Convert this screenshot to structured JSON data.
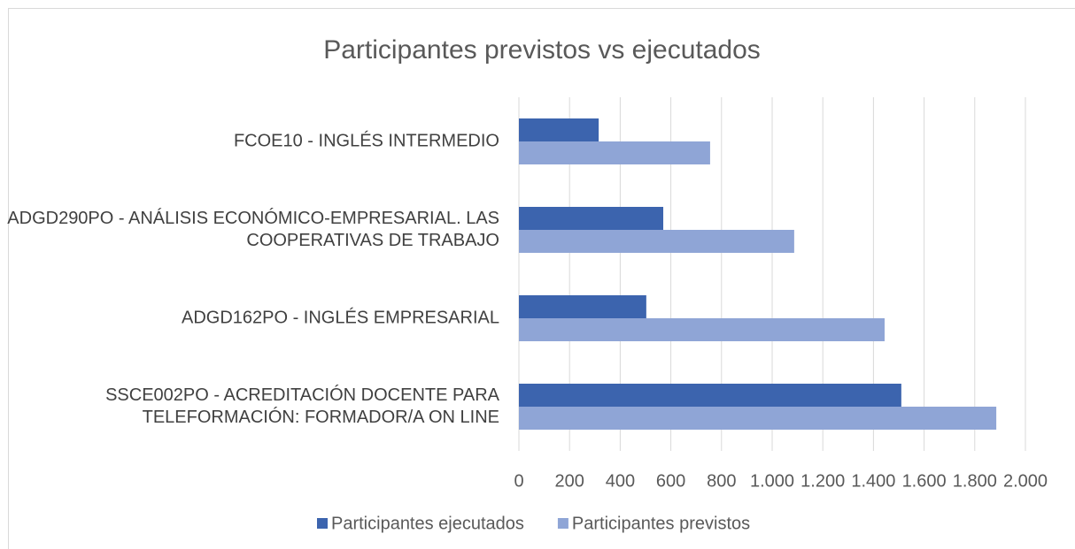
{
  "chart_data": {
    "type": "bar",
    "orientation": "horizontal",
    "title": "Participantes previstos vs ejecutados",
    "categories": [
      "FCOE10 - INGLÉS INTERMEDIO",
      "ADGD290PO - ANÁLISIS ECONÓMICO-EMPRESARIAL. LAS COOPERATIVAS DE TRABAJO",
      "ADGD162PO - INGLÉS EMPRESARIAL",
      "SSCE002PO - ACREDITACIÓN DOCENTE PARA TELEFORMACIÓN: FORMADOR/A ON LINE"
    ],
    "series": [
      {
        "name": "Participantes ejecutados",
        "color": "#3c64ae",
        "values": [
          315,
          570,
          503,
          1510
        ]
      },
      {
        "name": "Participantes previstos",
        "color": "#8fa5d6",
        "values": [
          755,
          1087,
          1444,
          1885
        ]
      }
    ],
    "xlim": [
      0,
      2000
    ],
    "xticks": [
      0,
      200,
      400,
      600,
      800,
      {
        "value": 1000,
        "label": "1.000"
      },
      {
        "value": 1200,
        "label": "1.200"
      },
      {
        "value": 1400,
        "label": "1.400"
      },
      {
        "value": 1600,
        "label": "1.600"
      },
      {
        "value": 1800,
        "label": "1.800"
      },
      {
        "value": 2000,
        "label": "2.000"
      }
    ],
    "grid": true,
    "legend": "bottom"
  }
}
